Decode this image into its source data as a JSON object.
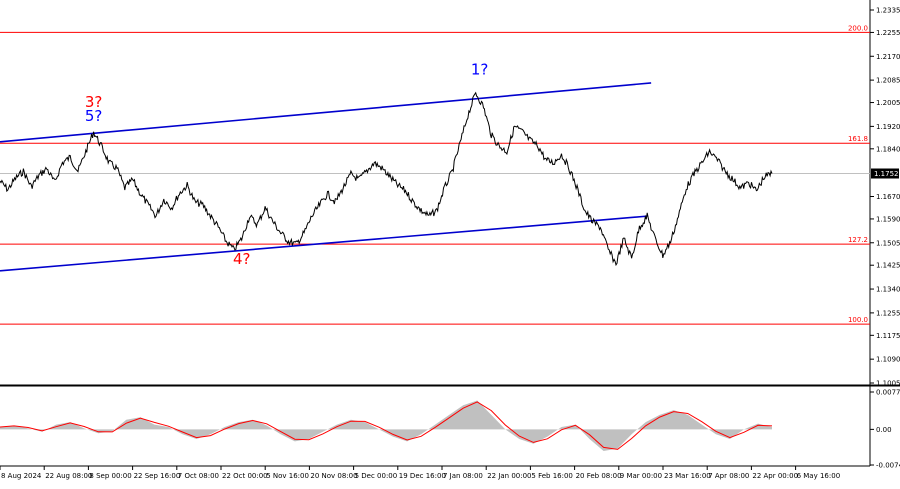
{
  "chart_data": [
    {
      "type": "line",
      "title": "",
      "y_ticks": [
        "1.2335",
        "1.2255",
        "1.2170",
        "1.2085",
        "1.2005",
        "1.1920",
        "1.1840",
        "1.1670",
        "1.1590",
        "1.1505",
        "1.1425",
        "1.1340",
        "1.1255",
        "1.1175",
        "1.1090",
        "1.1005"
      ],
      "ylim": [
        1.1005,
        1.2335
      ],
      "x_ticks": [
        "8 Aug 2024",
        "22 Aug 08:00",
        "8 Sep 00:00",
        "22 Sep 16:00",
        "7 Oct 08:00",
        "22 Oct 00:00",
        "5 Nov 16:00",
        "20 Nov 08:00",
        "5 Dec 00:00",
        "19 Dec 16:00",
        "7 Jan 08:00",
        "22 Jan 00:00",
        "5 Feb 16:00",
        "20 Feb 08:00",
        "9 Mar 00:00",
        "23 Mar 16:00",
        "7 Apr 08:00",
        "22 Apr 00:00",
        "6 May 16:00"
      ],
      "current_price": "1.1752",
      "price_series": [
        1.1725,
        1.1695,
        1.1735,
        1.176,
        1.1705,
        1.1745,
        1.177,
        1.172,
        1.179,
        1.181,
        1.176,
        1.183,
        1.19,
        1.185,
        1.179,
        1.177,
        1.17,
        1.173,
        1.168,
        1.164,
        1.16,
        1.166,
        1.163,
        1.168,
        1.171,
        1.165,
        1.164,
        1.16,
        1.156,
        1.151,
        1.148,
        1.152,
        1.16,
        1.157,
        1.163,
        1.158,
        1.154,
        1.151,
        1.15,
        1.154,
        1.16,
        1.164,
        1.168,
        1.165,
        1.17,
        1.175,
        1.173,
        1.176,
        1.179,
        1.177,
        1.174,
        1.171,
        1.169,
        1.165,
        1.162,
        1.16,
        1.162,
        1.17,
        1.176,
        1.186,
        1.196,
        1.204,
        1.199,
        1.189,
        1.185,
        1.183,
        1.192,
        1.19,
        1.187,
        1.185,
        1.18,
        1.179,
        1.182,
        1.177,
        1.17,
        1.162,
        1.158,
        1.156,
        1.148,
        1.143,
        1.152,
        1.145,
        1.156,
        1.16,
        1.152,
        1.146,
        1.151,
        1.16,
        1.17,
        1.175,
        1.179,
        1.183,
        1.18,
        1.176,
        1.173,
        1.17,
        1.172,
        1.169,
        1.174,
        1.1752
      ],
      "oscillator": {
        "y_ticks": [
          "0.00776",
          "0.00",
          "-0.0074"
        ],
        "ylim": [
          -0.0074,
          0.00776
        ],
        "histogram": [
          0.0005,
          0.0008,
          0.0002,
          -0.0005,
          0.001,
          0.0015,
          0.0002,
          -0.0008,
          -0.0004,
          0.002,
          0.0025,
          0.001,
          0.0005,
          -0.001,
          -0.002,
          -0.001,
          0.0005,
          0.0015,
          0.002,
          0.0008,
          -0.001,
          -0.0025,
          -0.002,
          -0.0005,
          0.001,
          0.002,
          0.0015,
          0.0,
          -0.0015,
          -0.0025,
          -0.001,
          0.001,
          0.003,
          0.005,
          0.006,
          0.003,
          0.0,
          -0.002,
          -0.003,
          -0.0015,
          0.0005,
          0.001,
          -0.002,
          -0.0045,
          -0.004,
          -0.001,
          0.0015,
          0.003,
          0.004,
          0.003,
          0.001,
          -0.001,
          -0.002,
          0.0,
          0.0012,
          0.0005
        ]
      }
    }
  ],
  "levels": [
    {
      "label": "200.0",
      "value": 1.2255,
      "color": "#ff0000"
    },
    {
      "label": "161.8",
      "value": 1.186,
      "color": "#ff0000"
    },
    {
      "label": "127.2",
      "value": 1.15,
      "color": "#ff0000"
    },
    {
      "label": "100.0",
      "value": 1.1215,
      "color": "#ff0000"
    }
  ],
  "wave_labels": [
    {
      "text": "3?",
      "color": "#ff0000"
    },
    {
      "text": "5?",
      "color": "#0000ff"
    },
    {
      "text": "4?",
      "color": "#ff0000"
    },
    {
      "text": "1?",
      "color": "#0000ff"
    }
  ],
  "colors": {
    "price_line": "#000000",
    "channel_line": "#0000cd",
    "oscillator_hist": "#c0c0c0",
    "oscillator_signal": "#ff0000",
    "grid_separator": "#000000"
  }
}
